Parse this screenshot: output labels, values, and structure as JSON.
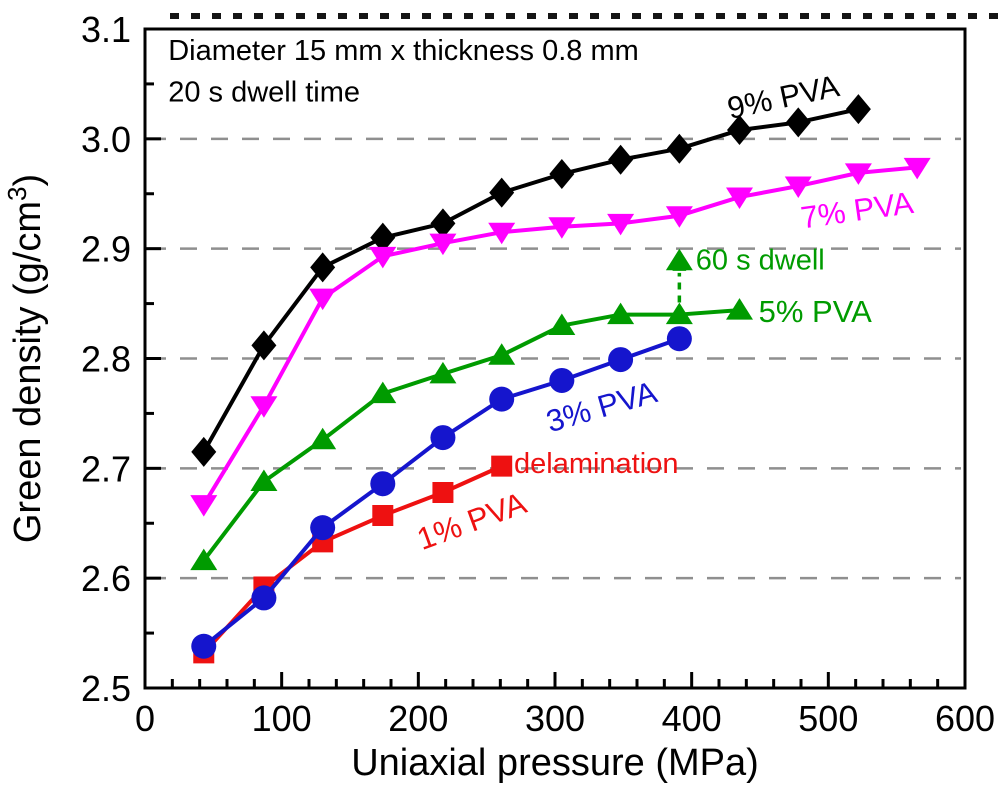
{
  "chart_data": {
    "type": "line",
    "title": "",
    "xlabel": "Uniaxial pressure (MPa)",
    "ylabel": "Green density (g/cm³)",
    "xlim": [
      0,
      600
    ],
    "ylim": [
      2.5,
      3.1
    ],
    "x_ticks": {
      "values": [
        0,
        100,
        200,
        300,
        400,
        500,
        600
      ],
      "labels": [
        "0",
        "100",
        "200",
        "300",
        "400",
        "500",
        "600"
      ],
      "minor_step": 20
    },
    "y_ticks": {
      "values": [
        2.5,
        2.6,
        2.7,
        2.8,
        2.9,
        3.0,
        3.1
      ],
      "labels": [
        "2.5",
        "2.6",
        "2.7",
        "2.8",
        "2.9",
        "3.0",
        "3.1"
      ],
      "minor_step": 0.05
    },
    "grid": {
      "y_values": [
        2.6,
        2.7,
        2.8,
        2.9,
        3.0
      ],
      "color": "#8f8f8f",
      "dash": "17 14",
      "width": 2.5
    },
    "series": [
      {
        "name": "9% PVA",
        "color": "#000000",
        "marker": "diamond",
        "x": [
          43,
          87,
          130,
          174,
          218,
          261,
          305,
          348,
          391,
          435,
          478,
          522
        ],
        "y": [
          2.715,
          2.812,
          2.883,
          2.91,
          2.923,
          2.951,
          2.968,
          2.981,
          2.991,
          3.008,
          3.015,
          3.027
        ]
      },
      {
        "name": "7% PVA",
        "color": "#ff00ff",
        "marker": "triangle-down",
        "x": [
          43,
          87,
          130,
          174,
          218,
          261,
          305,
          348,
          391,
          435,
          478,
          522,
          565
        ],
        "y": [
          2.667,
          2.757,
          2.855,
          2.893,
          2.905,
          2.915,
          2.92,
          2.923,
          2.93,
          2.947,
          2.957,
          2.969,
          2.974
        ]
      },
      {
        "name": "5% PVA",
        "color": "#009b00",
        "marker": "triangle-up",
        "x": [
          43,
          87,
          130,
          174,
          218,
          261,
          305,
          348,
          391,
          435
        ],
        "y": [
          2.616,
          2.688,
          2.726,
          2.768,
          2.786,
          2.803,
          2.83,
          2.84,
          2.84,
          2.844
        ]
      },
      {
        "name": "1% PVA",
        "color": "#ee1111",
        "marker": "square",
        "x": [
          43,
          87,
          130,
          174,
          218,
          261
        ],
        "y": [
          2.532,
          2.592,
          2.633,
          2.657,
          2.678,
          2.702
        ]
      },
      {
        "name": "3% PVA",
        "color": "#1515cd",
        "marker": "circle",
        "x": [
          43,
          87,
          130,
          174,
          218,
          261,
          305,
          348,
          391
        ],
        "y": [
          2.538,
          2.582,
          2.646,
          2.686,
          2.728,
          2.763,
          2.78,
          2.799,
          2.818
        ]
      }
    ],
    "extra_points": [
      {
        "label": "60 s dwell",
        "color": "#009b00",
        "marker": "triangle-up",
        "x": 391,
        "y": 2.889
      }
    ],
    "arrow": {
      "x": 391,
      "y_from": 2.851,
      "y_to": 2.878,
      "color": "#009b00",
      "style": "dashed",
      "direction": "up"
    },
    "annotations": [
      {
        "id": "info-line-1",
        "text": "Diameter 15 mm x thickness 0.8 mm",
        "x": 17,
        "y": 3.08,
        "color": "#000000",
        "anchor": "start",
        "rotate": 0,
        "size": 29
      },
      {
        "id": "info-line-2",
        "text": "20 s dwell time",
        "x": 17,
        "y": 3.042,
        "color": "#000000",
        "anchor": "start",
        "rotate": 0,
        "size": 29
      },
      {
        "id": "label-9-pva",
        "text": "9% PVA",
        "x": 467,
        "y": 3.038,
        "color": "#000000",
        "anchor": "middle",
        "rotate": -12,
        "size": 31
      },
      {
        "id": "label-7-pva",
        "text": "7% PVA",
        "x": 521,
        "y": 2.935,
        "color": "#ff00ff",
        "anchor": "middle",
        "rotate": -8,
        "size": 31
      },
      {
        "id": "label-60s",
        "text": "60 s dwell",
        "x": 403,
        "y": 2.889,
        "color": "#009b00",
        "anchor": "start",
        "rotate": 0,
        "size": 29
      },
      {
        "id": "label-5-pva",
        "text": "5% PVA",
        "x": 449,
        "y": 2.843,
        "color": "#009b00",
        "anchor": "start",
        "rotate": 0,
        "size": 31
      },
      {
        "id": "label-3-pva",
        "text": "3% PVA",
        "x": 334,
        "y": 2.756,
        "color": "#1515cd",
        "anchor": "middle",
        "rotate": -16,
        "size": 31
      },
      {
        "id": "label-1-pva",
        "text": "1% PVA",
        "x": 239,
        "y": 2.652,
        "color": "#ee1111",
        "anchor": "middle",
        "rotate": -20,
        "size": 31
      },
      {
        "id": "label-delam",
        "text": "delamination",
        "x": 270,
        "y": 2.704,
        "color": "#ee1111",
        "anchor": "start",
        "rotate": 0,
        "size": 29
      }
    ],
    "legend": "none"
  }
}
